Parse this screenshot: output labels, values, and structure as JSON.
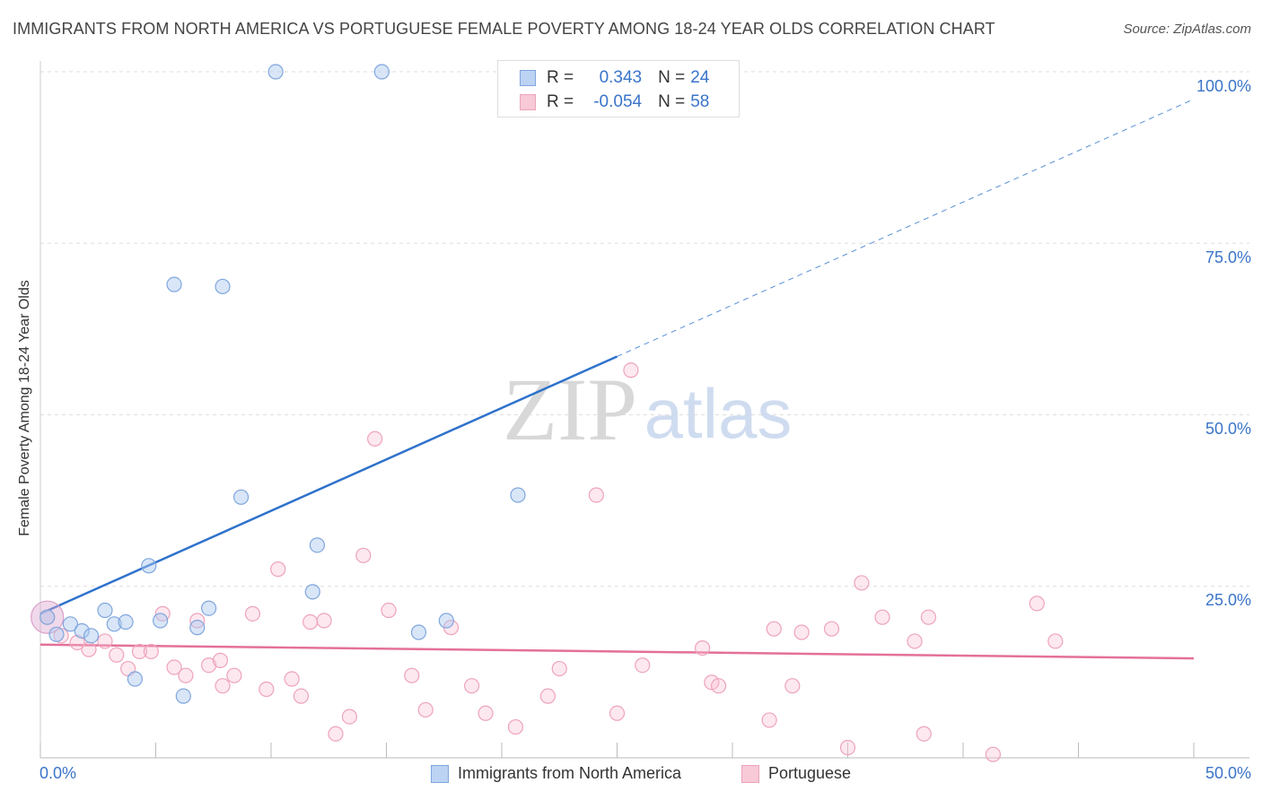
{
  "title": "IMMIGRANTS FROM NORTH AMERICA VS PORTUGUESE FEMALE POVERTY AMONG 18-24 YEAR OLDS CORRELATION CHART",
  "source": "Source: ZipAtlas.com",
  "watermark": {
    "zip": "ZIP",
    "atlas": "atlas"
  },
  "legend": {
    "r_label": "R =",
    "n_label": "N =",
    "rows": [
      {
        "r": "0.343",
        "n": "24"
      },
      {
        "r": "-0.054",
        "n": "58"
      }
    ]
  },
  "bottom_legend": [
    "Immigrants from North America",
    "Portuguese"
  ],
  "x_ticks": {
    "min_label": "0.0%",
    "max_label": "50.0%"
  },
  "y_ticks": [
    "100.0%",
    "75.0%",
    "50.0%",
    "25.0%"
  ],
  "chart_data": {
    "type": "scatter",
    "title": "IMMIGRANTS FROM NORTH AMERICA VS PORTUGUESE FEMALE POVERTY AMONG 18-24 YEAR OLDS CORRELATION CHART",
    "xlabel": "",
    "ylabel": "Female Poverty Among 18-24 Year Olds",
    "xlim": [
      0,
      50
    ],
    "ylim": [
      0,
      100
    ],
    "colors": {
      "blue": "#8fb4ea",
      "blue_line": "#2f72cc",
      "pink": "#f1a6bd",
      "pink_line": "#e4709a"
    },
    "series": [
      {
        "name": "Immigrants from North America",
        "points": [
          [
            0.3,
            20.5
          ],
          [
            0.7,
            18.0
          ],
          [
            1.3,
            19.5
          ],
          [
            1.8,
            18.5
          ],
          [
            2.2,
            17.8
          ],
          [
            2.8,
            21.5
          ],
          [
            3.2,
            19.5
          ],
          [
            3.7,
            19.8
          ],
          [
            4.1,
            11.5
          ],
          [
            4.7,
            28.0
          ],
          [
            5.2,
            20.0
          ],
          [
            5.8,
            69.0
          ],
          [
            6.2,
            9.0
          ],
          [
            6.8,
            19.0
          ],
          [
            7.3,
            21.8
          ],
          [
            7.9,
            68.7
          ],
          [
            8.7,
            38.0
          ],
          [
            10.2,
            100.0
          ],
          [
            11.8,
            24.2
          ],
          [
            12.0,
            31.0
          ],
          [
            14.8,
            100.0
          ],
          [
            16.4,
            18.3
          ],
          [
            17.6,
            20.0
          ],
          [
            20.7,
            38.3
          ]
        ],
        "trend": {
          "x0": 0,
          "y0": 21.0,
          "x1": 25.0,
          "y1": 58.5,
          "solid_until": 25.0,
          "dash_to_x": 50.0,
          "dash_to_y": 96.0
        }
      },
      {
        "name": "Portuguese",
        "points": [
          [
            0.3,
            20.5
          ],
          [
            0.9,
            17.8
          ],
          [
            1.6,
            16.8
          ],
          [
            2.1,
            15.8
          ],
          [
            2.8,
            17.0
          ],
          [
            3.3,
            15.0
          ],
          [
            3.8,
            13.0
          ],
          [
            4.3,
            15.5
          ],
          [
            4.8,
            15.5
          ],
          [
            5.3,
            21.0
          ],
          [
            5.8,
            13.2
          ],
          [
            6.3,
            12.0
          ],
          [
            6.8,
            20.0
          ],
          [
            7.3,
            13.5
          ],
          [
            7.8,
            14.2
          ],
          [
            7.9,
            10.5
          ],
          [
            8.4,
            12.0
          ],
          [
            9.2,
            21.0
          ],
          [
            9.8,
            10.0
          ],
          [
            10.3,
            27.5
          ],
          [
            10.9,
            11.5
          ],
          [
            11.3,
            9.0
          ],
          [
            11.7,
            19.8
          ],
          [
            12.3,
            20.0
          ],
          [
            12.8,
            3.5
          ],
          [
            13.4,
            6.0
          ],
          [
            14.0,
            29.5
          ],
          [
            14.5,
            46.5
          ],
          [
            15.1,
            21.5
          ],
          [
            16.1,
            12.0
          ],
          [
            16.7,
            7.0
          ],
          [
            17.8,
            19.0
          ],
          [
            18.7,
            10.5
          ],
          [
            19.3,
            6.5
          ],
          [
            20.6,
            4.5
          ],
          [
            22.0,
            9.0
          ],
          [
            22.5,
            13.0
          ],
          [
            24.1,
            38.3
          ],
          [
            25.0,
            6.5
          ],
          [
            25.6,
            56.5
          ],
          [
            26.1,
            13.5
          ],
          [
            28.7,
            16.0
          ],
          [
            29.1,
            11.0
          ],
          [
            29.4,
            10.5
          ],
          [
            31.6,
            5.5
          ],
          [
            31.8,
            18.8
          ],
          [
            32.6,
            10.5
          ],
          [
            33.0,
            18.3
          ],
          [
            34.3,
            18.8
          ],
          [
            35.0,
            1.5
          ],
          [
            35.6,
            25.5
          ],
          [
            36.5,
            20.5
          ],
          [
            37.9,
            17.0
          ],
          [
            38.3,
            3.5
          ],
          [
            38.5,
            20.5
          ],
          [
            41.3,
            0.5
          ],
          [
            43.2,
            22.5
          ],
          [
            44.0,
            17.0
          ]
        ],
        "trend": {
          "x0": 0,
          "y0": 16.5,
          "x1": 50.0,
          "y1": 14.5
        }
      }
    ]
  }
}
